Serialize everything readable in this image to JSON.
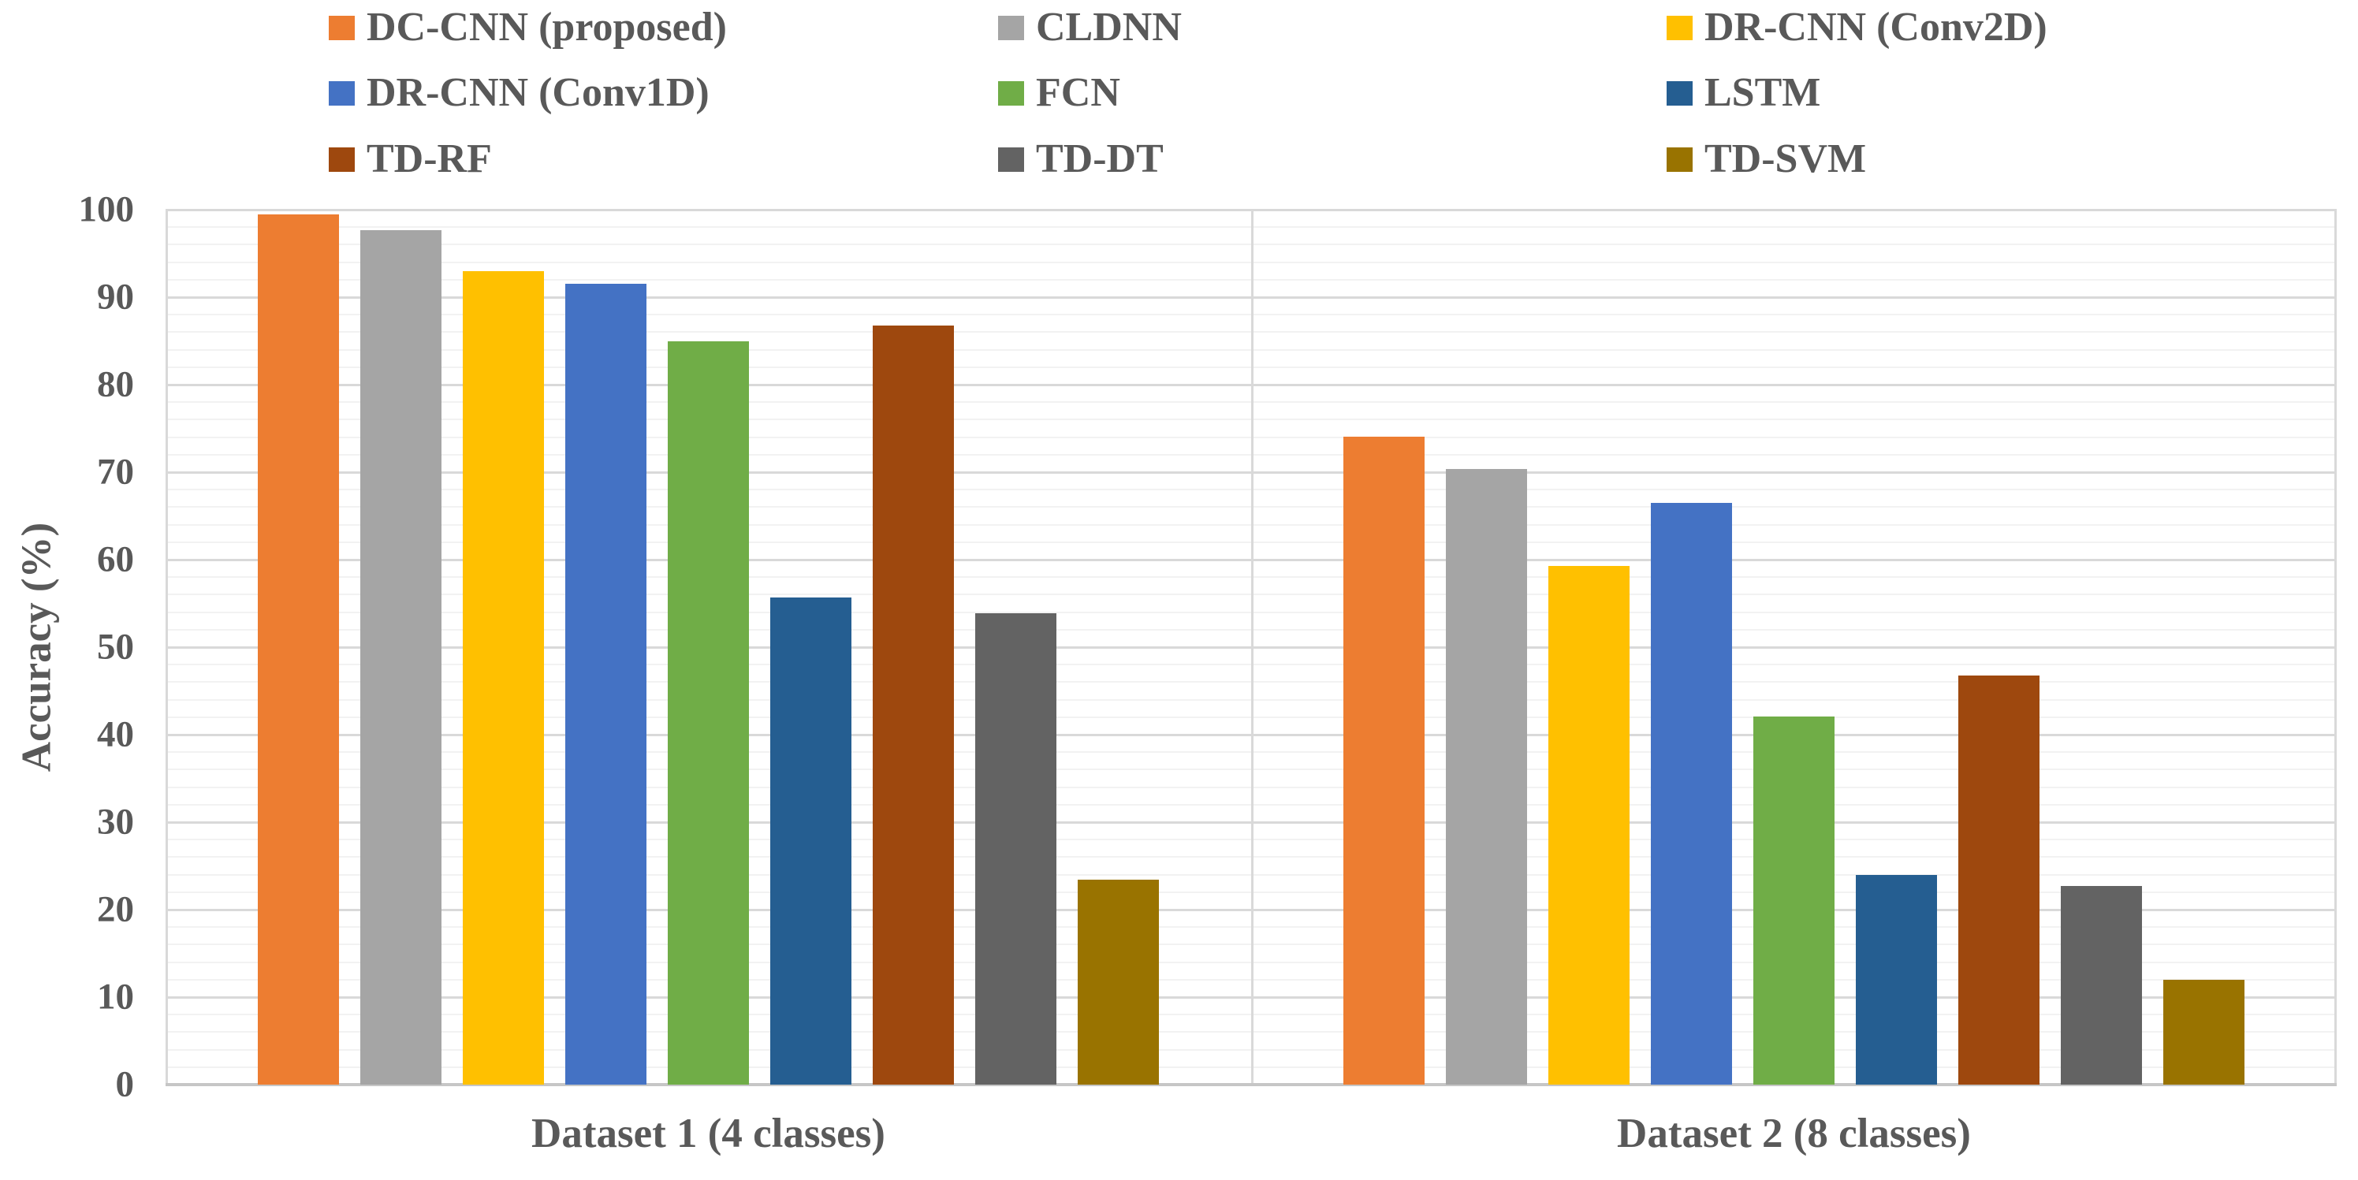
{
  "figure": {
    "background": "#ffffff",
    "text_color": "#595959",
    "grid_major_color": "#d9d9d9",
    "grid_minor_color": "#f2f2f2",
    "axis_line_color": "#c6c6c6"
  },
  "chart_data": {
    "type": "bar",
    "title": "",
    "xlabel": "",
    "ylabel": "Accuracy (%)",
    "ylim": [
      0,
      100
    ],
    "ytick_step": 10,
    "minor_tick_step": 2,
    "ytick_labels": [
      "0",
      "10",
      "20",
      "30",
      "40",
      "50",
      "60",
      "70",
      "80",
      "90",
      "100"
    ],
    "grid": "on",
    "legend_position": "top",
    "legend_columns": 3,
    "categories": [
      "Dataset 1 (4 classes)",
      "Dataset 2 (8 classes)"
    ],
    "series": [
      {
        "name": "DC-CNN (proposed)",
        "color": "#ED7D31",
        "values": [
          99.5,
          74.1
        ]
      },
      {
        "name": "CLDNN",
        "color": "#A5A5A5",
        "values": [
          97.7,
          70.4
        ]
      },
      {
        "name": "DR-CNN (Conv2D)",
        "color": "#FFC000",
        "values": [
          93.0,
          59.3
        ]
      },
      {
        "name": "DR-CNN (Conv1D)",
        "color": "#4472C4",
        "values": [
          91.5,
          66.5
        ]
      },
      {
        "name": "FCN",
        "color": "#70AD47",
        "values": [
          85.0,
          42.1
        ]
      },
      {
        "name": "LSTM",
        "color": "#255E91",
        "values": [
          55.7,
          24.0
        ]
      },
      {
        "name": "TD-RF",
        "color": "#9E480E",
        "values": [
          86.8,
          46.8
        ]
      },
      {
        "name": "TD-DT",
        "color": "#636363",
        "values": [
          53.9,
          22.7
        ]
      },
      {
        "name": "TD-SVM",
        "color": "#997300",
        "values": [
          23.4,
          12.0
        ]
      }
    ]
  }
}
